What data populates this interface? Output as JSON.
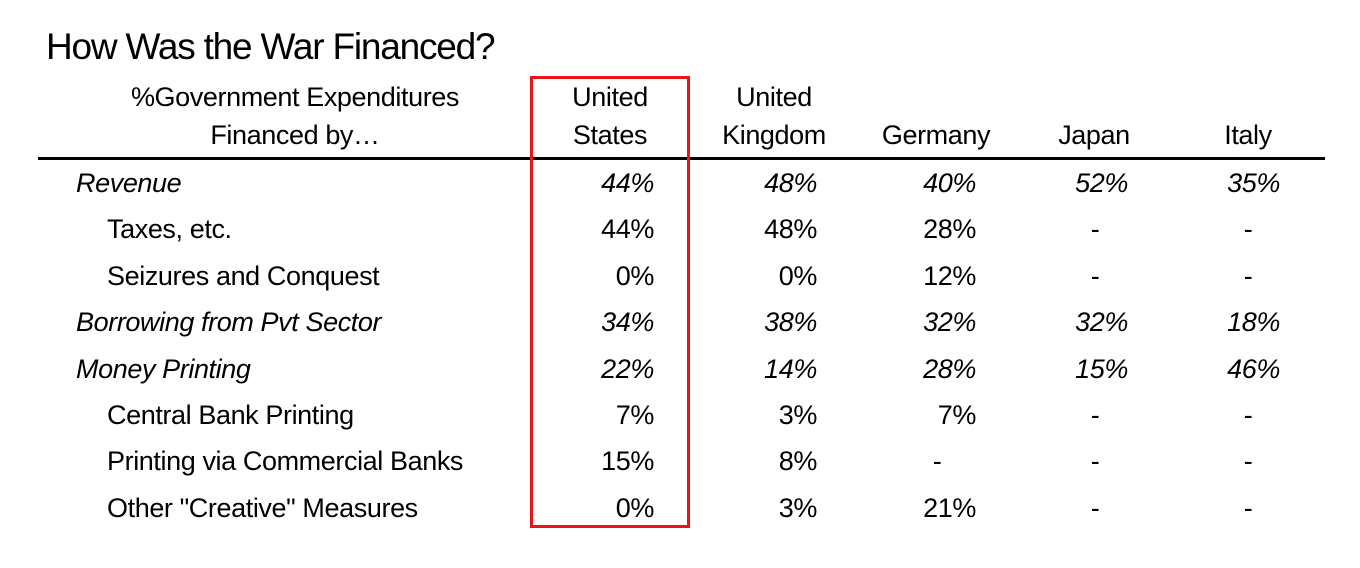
{
  "chart_data": {
    "type": "table",
    "title": "How Was the War Financed?",
    "header_label": [
      "%Government Expenditures",
      "Financed by…"
    ],
    "columns": [
      {
        "name": [
          "United",
          "States"
        ],
        "highlighted": true
      },
      {
        "name": [
          "United",
          "Kingdom"
        ],
        "highlighted": false
      },
      {
        "name": [
          "",
          "Germany"
        ],
        "highlighted": false
      },
      {
        "name": [
          "",
          "Japan"
        ],
        "highlighted": false
      },
      {
        "name": [
          "",
          "Italy"
        ],
        "highlighted": false
      }
    ],
    "rows": [
      {
        "label": "Revenue",
        "level": "main",
        "values": [
          "44%",
          "48%",
          "40%",
          "52%",
          "35%"
        ]
      },
      {
        "label": "Taxes, etc.",
        "level": "sub",
        "values": [
          "44%",
          "48%",
          "28%",
          "-",
          "-"
        ]
      },
      {
        "label": "Seizures and Conquest",
        "level": "sub",
        "values": [
          "0%",
          "0%",
          "12%",
          "-",
          "-"
        ]
      },
      {
        "label": "Borrowing from Pvt Sector",
        "level": "main",
        "values": [
          "34%",
          "38%",
          "32%",
          "32%",
          "18%"
        ]
      },
      {
        "label": "Money Printing",
        "level": "main",
        "values": [
          "22%",
          "14%",
          "28%",
          "15%",
          "46%"
        ]
      },
      {
        "label": "Central Bank Printing",
        "level": "sub",
        "values": [
          "7%",
          "3%",
          "7%",
          "-",
          "-"
        ]
      },
      {
        "label": "Printing via Commercial Banks",
        "level": "sub",
        "values": [
          "15%",
          "8%",
          "-",
          "-",
          "-"
        ]
      },
      {
        "label": "Other \"Creative\" Measures",
        "level": "sub",
        "values": [
          "0%",
          "3%",
          "21%",
          "-",
          "-"
        ]
      }
    ],
    "highlight_color": "#e8141c"
  }
}
